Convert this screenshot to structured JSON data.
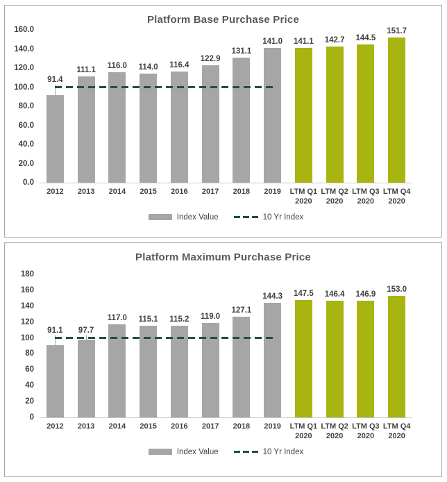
{
  "colors": {
    "bar_historical": "#A6A6A6",
    "bar_ltm": "#A8B40F",
    "reference_line": "#1F4E48",
    "title_text": "#595959",
    "label_text": "#404040",
    "axis_line": "#C9C9C9",
    "panel_border": "#A6A6A6"
  },
  "chart_data": [
    {
      "type": "bar",
      "title": "Platform Base Purchase Price",
      "categories": [
        "2012",
        "2013",
        "2014",
        "2015",
        "2016",
        "2017",
        "2018",
        "2019",
        "LTM Q1\n2020",
        "LTM Q2\n2020",
        "LTM Q3\n2020",
        "LTM Q4\n2020"
      ],
      "series": [
        {
          "name": "Index Value",
          "values": [
            91.4,
            111.1,
            116.0,
            114.0,
            116.4,
            122.9,
            131.1,
            141.0,
            141.1,
            142.7,
            144.5,
            151.7
          ]
        }
      ],
      "reference_line": {
        "name": "10 Yr Index",
        "value": 100.0,
        "spans_categories": [
          "2012",
          "2019"
        ]
      },
      "ylim": [
        0,
        160
      ],
      "ytick_step": 20,
      "ytick_decimals": 1,
      "label_decimals": 1,
      "ltm_start_index": 8,
      "grid": false,
      "legend_position": "bottom",
      "legend": [
        "Index Value",
        "10 Yr Index"
      ]
    },
    {
      "type": "bar",
      "title": "Platform Maximum Purchase Price",
      "categories": [
        "2012",
        "2013",
        "2014",
        "2015",
        "2016",
        "2017",
        "2018",
        "2019",
        "LTM Q1\n2020",
        "LTM Q2\n2020",
        "LTM Q3\n2020",
        "LTM Q4\n2020"
      ],
      "series": [
        {
          "name": "Index Value",
          "values": [
            91.1,
            97.7,
            117.0,
            115.1,
            115.2,
            119.0,
            127.1,
            144.3,
            147.5,
            146.4,
            146.9,
            153.0
          ]
        }
      ],
      "reference_line": {
        "name": "10 Yr Index",
        "value": 100.0,
        "spans_categories": [
          "2012",
          "2019"
        ]
      },
      "ylim": [
        0,
        180
      ],
      "ytick_step": 20,
      "ytick_decimals": 0,
      "label_decimals": 1,
      "ltm_start_index": 8,
      "grid": false,
      "legend_position": "bottom",
      "legend": [
        "Index Value",
        "10 Yr Index"
      ]
    }
  ]
}
